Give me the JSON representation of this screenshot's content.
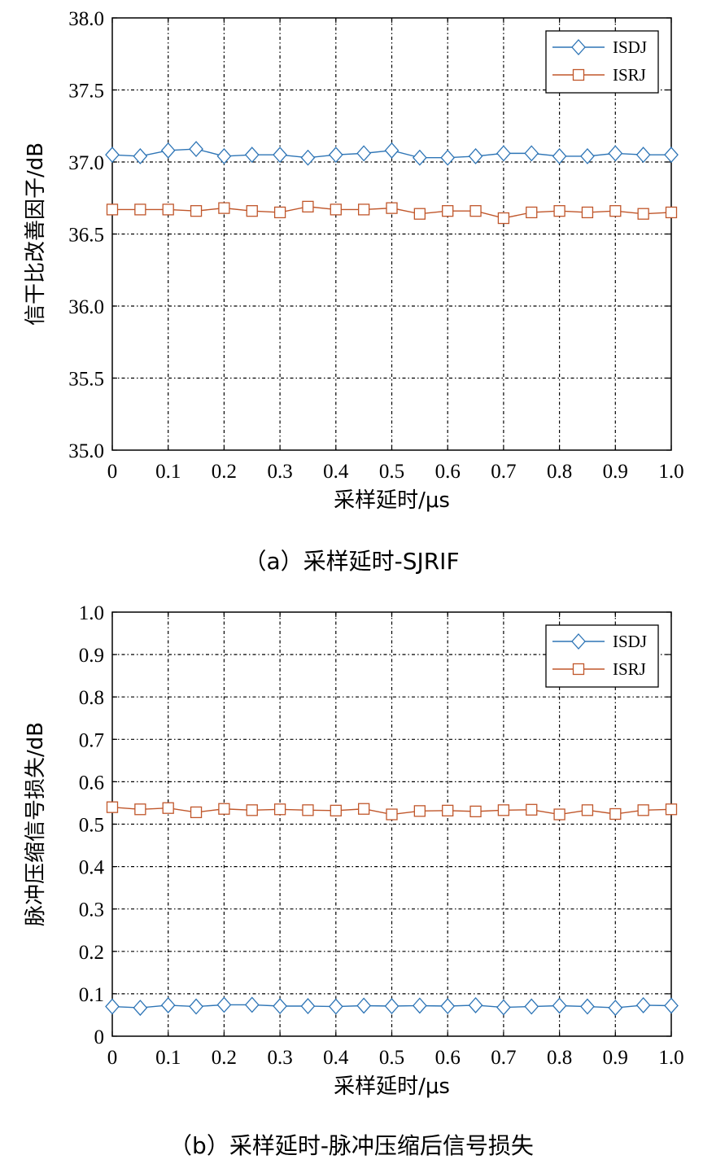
{
  "chart_data": [
    {
      "type": "line",
      "caption": "（a）采样延时-SJRIF",
      "xlabel": "采样延时/μs",
      "ylabel": "信干比改善因子/dB",
      "ylim": [
        35.0,
        38.0
      ],
      "xlim": [
        0,
        1.0
      ],
      "yticks": [
        "35.0",
        "35.5",
        "36.0",
        "36.5",
        "37.0",
        "37.5",
        "38.0"
      ],
      "xticks": [
        "0",
        "0.1",
        "0.2",
        "0.3",
        "0.4",
        "0.5",
        "0.6",
        "0.7",
        "0.8",
        "0.9",
        "1.0"
      ],
      "grid": true,
      "legend_position": "top-right",
      "x": [
        0,
        0.05,
        0.1,
        0.15,
        0.2,
        0.25,
        0.3,
        0.35,
        0.4,
        0.45,
        0.5,
        0.55,
        0.6,
        0.65,
        0.7,
        0.75,
        0.8,
        0.85,
        0.9,
        0.95,
        1.0
      ],
      "series": [
        {
          "name": "ISDJ",
          "color": "#2e75b6",
          "marker": "diamond",
          "values": [
            37.05,
            37.04,
            37.08,
            37.09,
            37.04,
            37.05,
            37.05,
            37.03,
            37.05,
            37.06,
            37.08,
            37.03,
            37.03,
            37.04,
            37.06,
            37.06,
            37.04,
            37.04,
            37.06,
            37.05,
            37.05
          ]
        },
        {
          "name": "ISRJ",
          "color": "#c0562a",
          "marker": "square",
          "values": [
            36.67,
            36.67,
            36.67,
            36.66,
            36.68,
            36.66,
            36.65,
            36.69,
            36.67,
            36.67,
            36.68,
            36.64,
            36.66,
            36.66,
            36.61,
            36.65,
            36.66,
            36.65,
            36.66,
            36.64,
            36.65
          ]
        }
      ]
    },
    {
      "type": "line",
      "caption": "（b）采样延时-脉冲压缩后信号损失",
      "xlabel": "采样延时/μs",
      "ylabel": "脉冲压缩信号损失/dB",
      "ylim": [
        0,
        1.0
      ],
      "xlim": [
        0,
        1.0
      ],
      "yticks": [
        "0",
        "0.1",
        "0.2",
        "0.3",
        "0.4",
        "0.5",
        "0.6",
        "0.7",
        "0.8",
        "0.9",
        "1.0"
      ],
      "xticks": [
        "0",
        "0.1",
        "0.2",
        "0.3",
        "0.4",
        "0.5",
        "0.6",
        "0.7",
        "0.8",
        "0.9",
        "1.0"
      ],
      "grid": true,
      "legend_position": "top-right",
      "x": [
        0,
        0.05,
        0.1,
        0.15,
        0.2,
        0.25,
        0.3,
        0.35,
        0.4,
        0.45,
        0.5,
        0.55,
        0.6,
        0.65,
        0.7,
        0.75,
        0.8,
        0.85,
        0.9,
        0.95,
        1.0
      ],
      "series": [
        {
          "name": "ISDJ",
          "color": "#2e75b6",
          "marker": "diamond",
          "values": [
            0.07,
            0.067,
            0.073,
            0.07,
            0.074,
            0.074,
            0.071,
            0.071,
            0.07,
            0.072,
            0.071,
            0.072,
            0.071,
            0.073,
            0.068,
            0.07,
            0.072,
            0.07,
            0.067,
            0.073,
            0.072
          ]
        },
        {
          "name": "ISRJ",
          "color": "#c0562a",
          "marker": "square",
          "values": [
            0.54,
            0.535,
            0.538,
            0.528,
            0.536,
            0.533,
            0.535,
            0.533,
            0.532,
            0.536,
            0.523,
            0.531,
            0.532,
            0.53,
            0.533,
            0.534,
            0.523,
            0.533,
            0.524,
            0.533,
            0.535
          ]
        }
      ]
    }
  ]
}
